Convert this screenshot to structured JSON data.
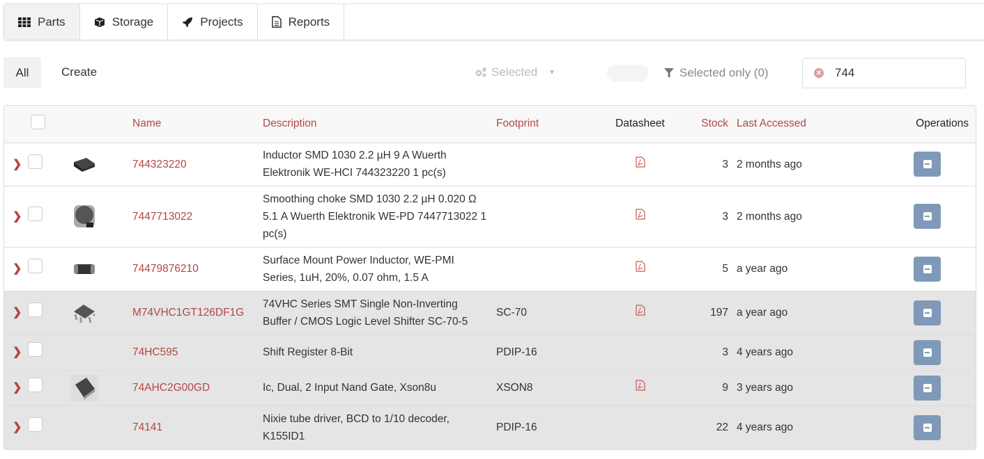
{
  "nav": {
    "tabs": [
      {
        "label": "Parts",
        "icon": "grid-icon",
        "active": true
      },
      {
        "label": "Storage",
        "icon": "cube-icon"
      },
      {
        "label": "Projects",
        "icon": "rocket-icon"
      },
      {
        "label": "Reports",
        "icon": "document-icon"
      }
    ]
  },
  "toolbar": {
    "all_label": "All",
    "create_label": "Create",
    "selected_label": "Selected",
    "selected_only_label": "Selected only (0)",
    "search_value": "744"
  },
  "table": {
    "headers": {
      "name": "Name",
      "description": "Description",
      "footprint": "Footprint",
      "datasheet": "Datasheet",
      "stock": "Stock",
      "last_accessed": "Last Accessed",
      "operations": "Operations"
    },
    "rows": [
      {
        "name": "744323220",
        "description": "Inductor SMD 1030 2.2 µH 9 A Wuerth Elektronik WE-HCI 744323220 1 pc(s)",
        "footprint": "",
        "datasheet": true,
        "stock": "3",
        "last_accessed": "2 months ago",
        "image": "smd-inductor",
        "grey": false
      },
      {
        "name": "7447713022",
        "description": "Smoothing choke SMD 1030 2.2 µH 0.020 Ω 5.1 A Wuerth Elektronik WE-PD 7447713022 1 pc(s)",
        "footprint": "",
        "datasheet": true,
        "stock": "3",
        "last_accessed": "2 months ago",
        "image": "choke",
        "grey": false
      },
      {
        "name": "74479876210",
        "description": "Surface Mount Power Inductor, WE-PMI Series, 1uH, 20%, 0.07 ohm, 1.5 A",
        "footprint": "",
        "datasheet": true,
        "stock": "5",
        "last_accessed": "a year ago",
        "image": "chip",
        "grey": false
      },
      {
        "name": "M74VHC1GT126DF1G",
        "description": "74VHC Series SMT Single Non-Inverting Buffer / CMOS Logic Level Shifter SC-70-5",
        "footprint": "SC-70",
        "datasheet": true,
        "stock": "197",
        "last_accessed": "a year ago",
        "image": "sc70",
        "grey": true
      },
      {
        "name": "74HC595",
        "description": "Shift Register 8-Bit",
        "footprint": "PDIP-16",
        "datasheet": false,
        "stock": "3",
        "last_accessed": "4 years ago",
        "image": "",
        "grey": true
      },
      {
        "name": "74AHC2G00GD",
        "description": "Ic, Dual, 2 Input Nand Gate, Xson8u",
        "footprint": "XSON8",
        "datasheet": true,
        "stock": "9",
        "last_accessed": "3 years ago",
        "image": "xson",
        "grey": true
      },
      {
        "name": "74141",
        "description": "Nixie tube driver, BCD to 1/10 decoder, K155ID1",
        "footprint": "PDIP-16",
        "datasheet": false,
        "stock": "22",
        "last_accessed": "4 years ago",
        "image": "",
        "grey": true
      }
    ]
  },
  "colors": {
    "accent": "#b44545",
    "ops_button": "#7f9ab8",
    "grey_row": "#e5e5e5"
  }
}
